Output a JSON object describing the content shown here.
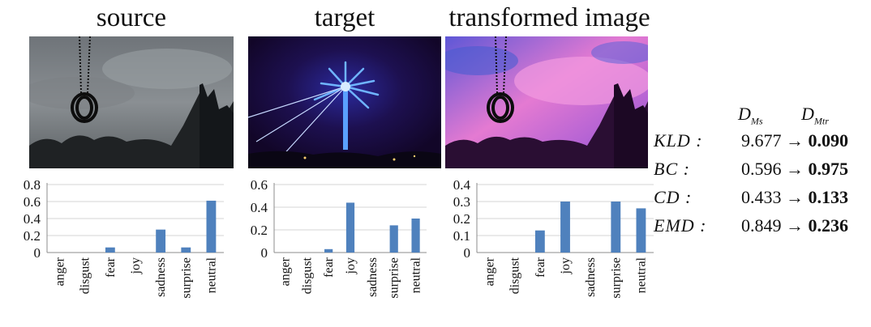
{
  "titles": {
    "source": "source",
    "target": "target",
    "transformed": "transformed image"
  },
  "chart_data": [
    {
      "type": "bar",
      "panel": "source",
      "categories": [
        "anger",
        "disgust",
        "fear",
        "joy",
        "sadness",
        "surprise",
        "neutral"
      ],
      "values": [
        0,
        0,
        0.06,
        0,
        0.27,
        0.06,
        0.61
      ],
      "ylim": [
        0,
        0.8
      ],
      "yticks": [
        0,
        0.2,
        0.4,
        0.6,
        0.8
      ],
      "ytick_labels": [
        "0",
        "0.2",
        "0.4",
        "0.6",
        "0.8"
      ],
      "grid": true,
      "color": "#4f81bd"
    },
    {
      "type": "bar",
      "panel": "target",
      "categories": [
        "anger",
        "disgust",
        "fear",
        "joy",
        "sadness",
        "surprise",
        "neutral"
      ],
      "values": [
        0,
        0,
        0.03,
        0.44,
        0,
        0.24,
        0.3
      ],
      "ylim": [
        0,
        0.6
      ],
      "yticks": [
        0,
        0.2,
        0.4,
        0.6
      ],
      "ytick_labels": [
        "0",
        "0.2",
        "0.4",
        "0.6"
      ],
      "grid": true,
      "color": "#4f81bd"
    },
    {
      "type": "bar",
      "panel": "transformed",
      "categories": [
        "anger",
        "disgust",
        "fear",
        "joy",
        "sadness",
        "surprise",
        "neutral"
      ],
      "values": [
        0,
        0,
        0.13,
        0.3,
        0,
        0.3,
        0.26
      ],
      "ylim": [
        0,
        0.4
      ],
      "yticks": [
        0,
        0.1,
        0.2,
        0.3,
        0.4
      ],
      "ytick_labels": [
        "0",
        "0.1",
        "0.2",
        "0.3",
        "0.4"
      ],
      "grid": true,
      "color": "#4f81bd"
    }
  ],
  "metrics": {
    "header_before": "D",
    "header_before_sub": "Ms",
    "header_after": "D",
    "header_after_sub": "Mtr",
    "arrow": "→",
    "rows": [
      {
        "label": "KLD :",
        "before": "9.677",
        "after": "0.090"
      },
      {
        "label": "BC :",
        "before": "0.596",
        "after": "0.975"
      },
      {
        "label": "CD :",
        "before": "0.433",
        "after": "0.133"
      },
      {
        "label": "EMD :",
        "before": "0.849",
        "after": "0.236"
      }
    ]
  }
}
